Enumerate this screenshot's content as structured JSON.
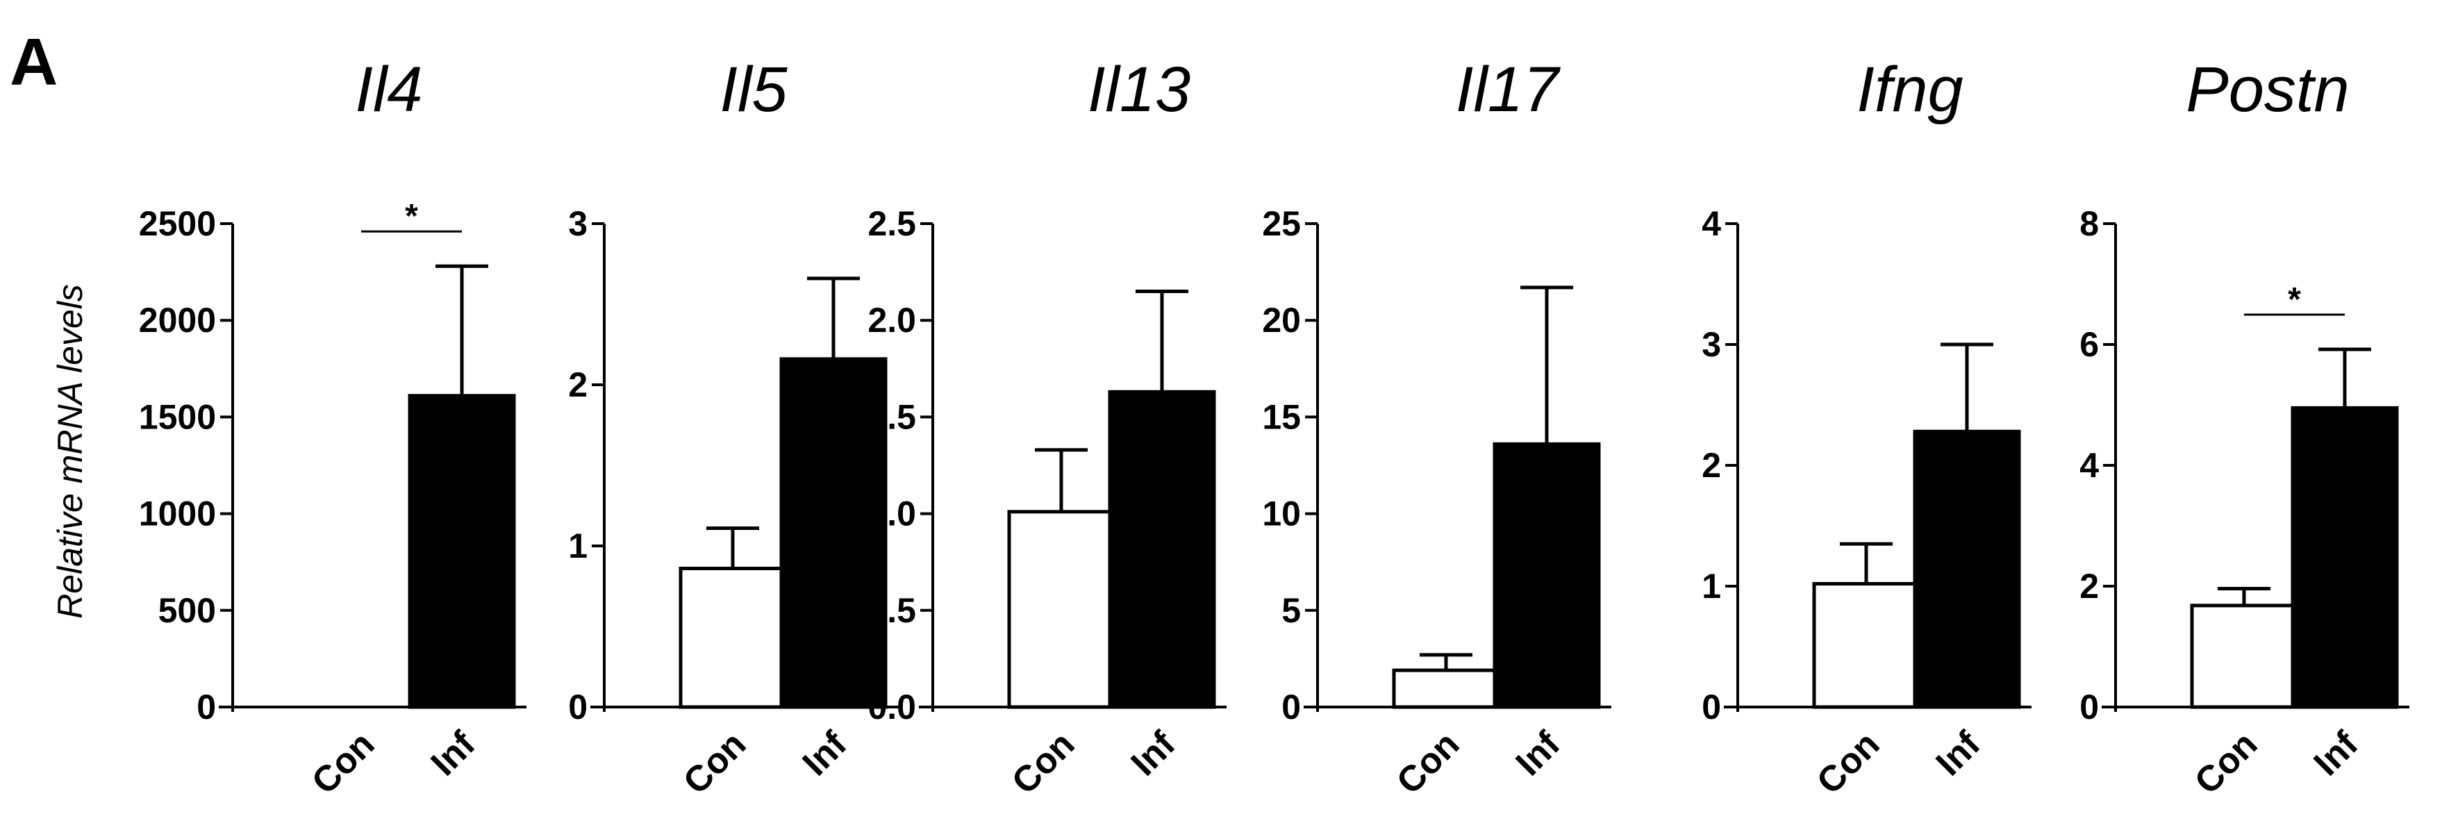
{
  "figure": {
    "panel_letter": "A",
    "ylabel": "Relative mRNA levels"
  },
  "chart_data": [
    {
      "type": "bar",
      "title": "Il4",
      "categories": [
        "Con",
        "Inf"
      ],
      "values": [
        0,
        1610
      ],
      "errors": [
        0,
        670
      ],
      "ylim": [
        0,
        2500
      ],
      "yticks": [
        "0",
        "500",
        "1000",
        "1500",
        "2000",
        "2500"
      ],
      "ylabel": "Relative mRNA levels",
      "bar_fills": [
        "#ffffff",
        "#000000"
      ],
      "significance": "*"
    },
    {
      "type": "bar",
      "title": "Il5",
      "categories": [
        "Con",
        "Inf"
      ],
      "values": [
        0.86,
        2.16
      ],
      "errors": [
        0.25,
        0.5
      ],
      "ylim": [
        0,
        3
      ],
      "yticks": [
        "0",
        "1",
        "2",
        "3"
      ],
      "bar_fills": [
        "#ffffff",
        "#000000"
      ]
    },
    {
      "type": "bar",
      "title": "Il13",
      "categories": [
        "Con",
        "Inf"
      ],
      "values": [
        1.01,
        1.63
      ],
      "errors": [
        0.32,
        0.52
      ],
      "ylim": [
        0,
        2.5
      ],
      "yticks": [
        "0.0",
        "0.5",
        "1.0",
        "1.5",
        "2.0",
        "2.5"
      ],
      "bar_fills": [
        "#ffffff",
        "#000000"
      ]
    },
    {
      "type": "bar",
      "title": "Il17",
      "categories": [
        "Con",
        "Inf"
      ],
      "values": [
        1.9,
        13.6
      ],
      "errors": [
        0.8,
        8.1
      ],
      "ylim": [
        0,
        25
      ],
      "yticks": [
        "0",
        "5",
        "10",
        "15",
        "20",
        "25"
      ],
      "bar_fills": [
        "#ffffff",
        "#000000"
      ]
    },
    {
      "type": "bar",
      "title": "Ifng",
      "categories": [
        "Con",
        "Inf"
      ],
      "values": [
        1.02,
        2.28
      ],
      "errors": [
        0.33,
        0.72
      ],
      "ylim": [
        0,
        4
      ],
      "yticks": [
        "0",
        "1",
        "2",
        "3",
        "4"
      ],
      "bar_fills": [
        "#ffffff",
        "#000000"
      ]
    },
    {
      "type": "bar",
      "title": "Postn",
      "categories": [
        "Con",
        "Inf"
      ],
      "values": [
        1.68,
        4.95
      ],
      "errors": [
        0.28,
        0.97
      ],
      "ylim": [
        0,
        8
      ],
      "yticks": [
        "0",
        "2",
        "4",
        "6",
        "8"
      ],
      "bar_fills": [
        "#ffffff",
        "#000000"
      ],
      "significance": "*"
    }
  ]
}
